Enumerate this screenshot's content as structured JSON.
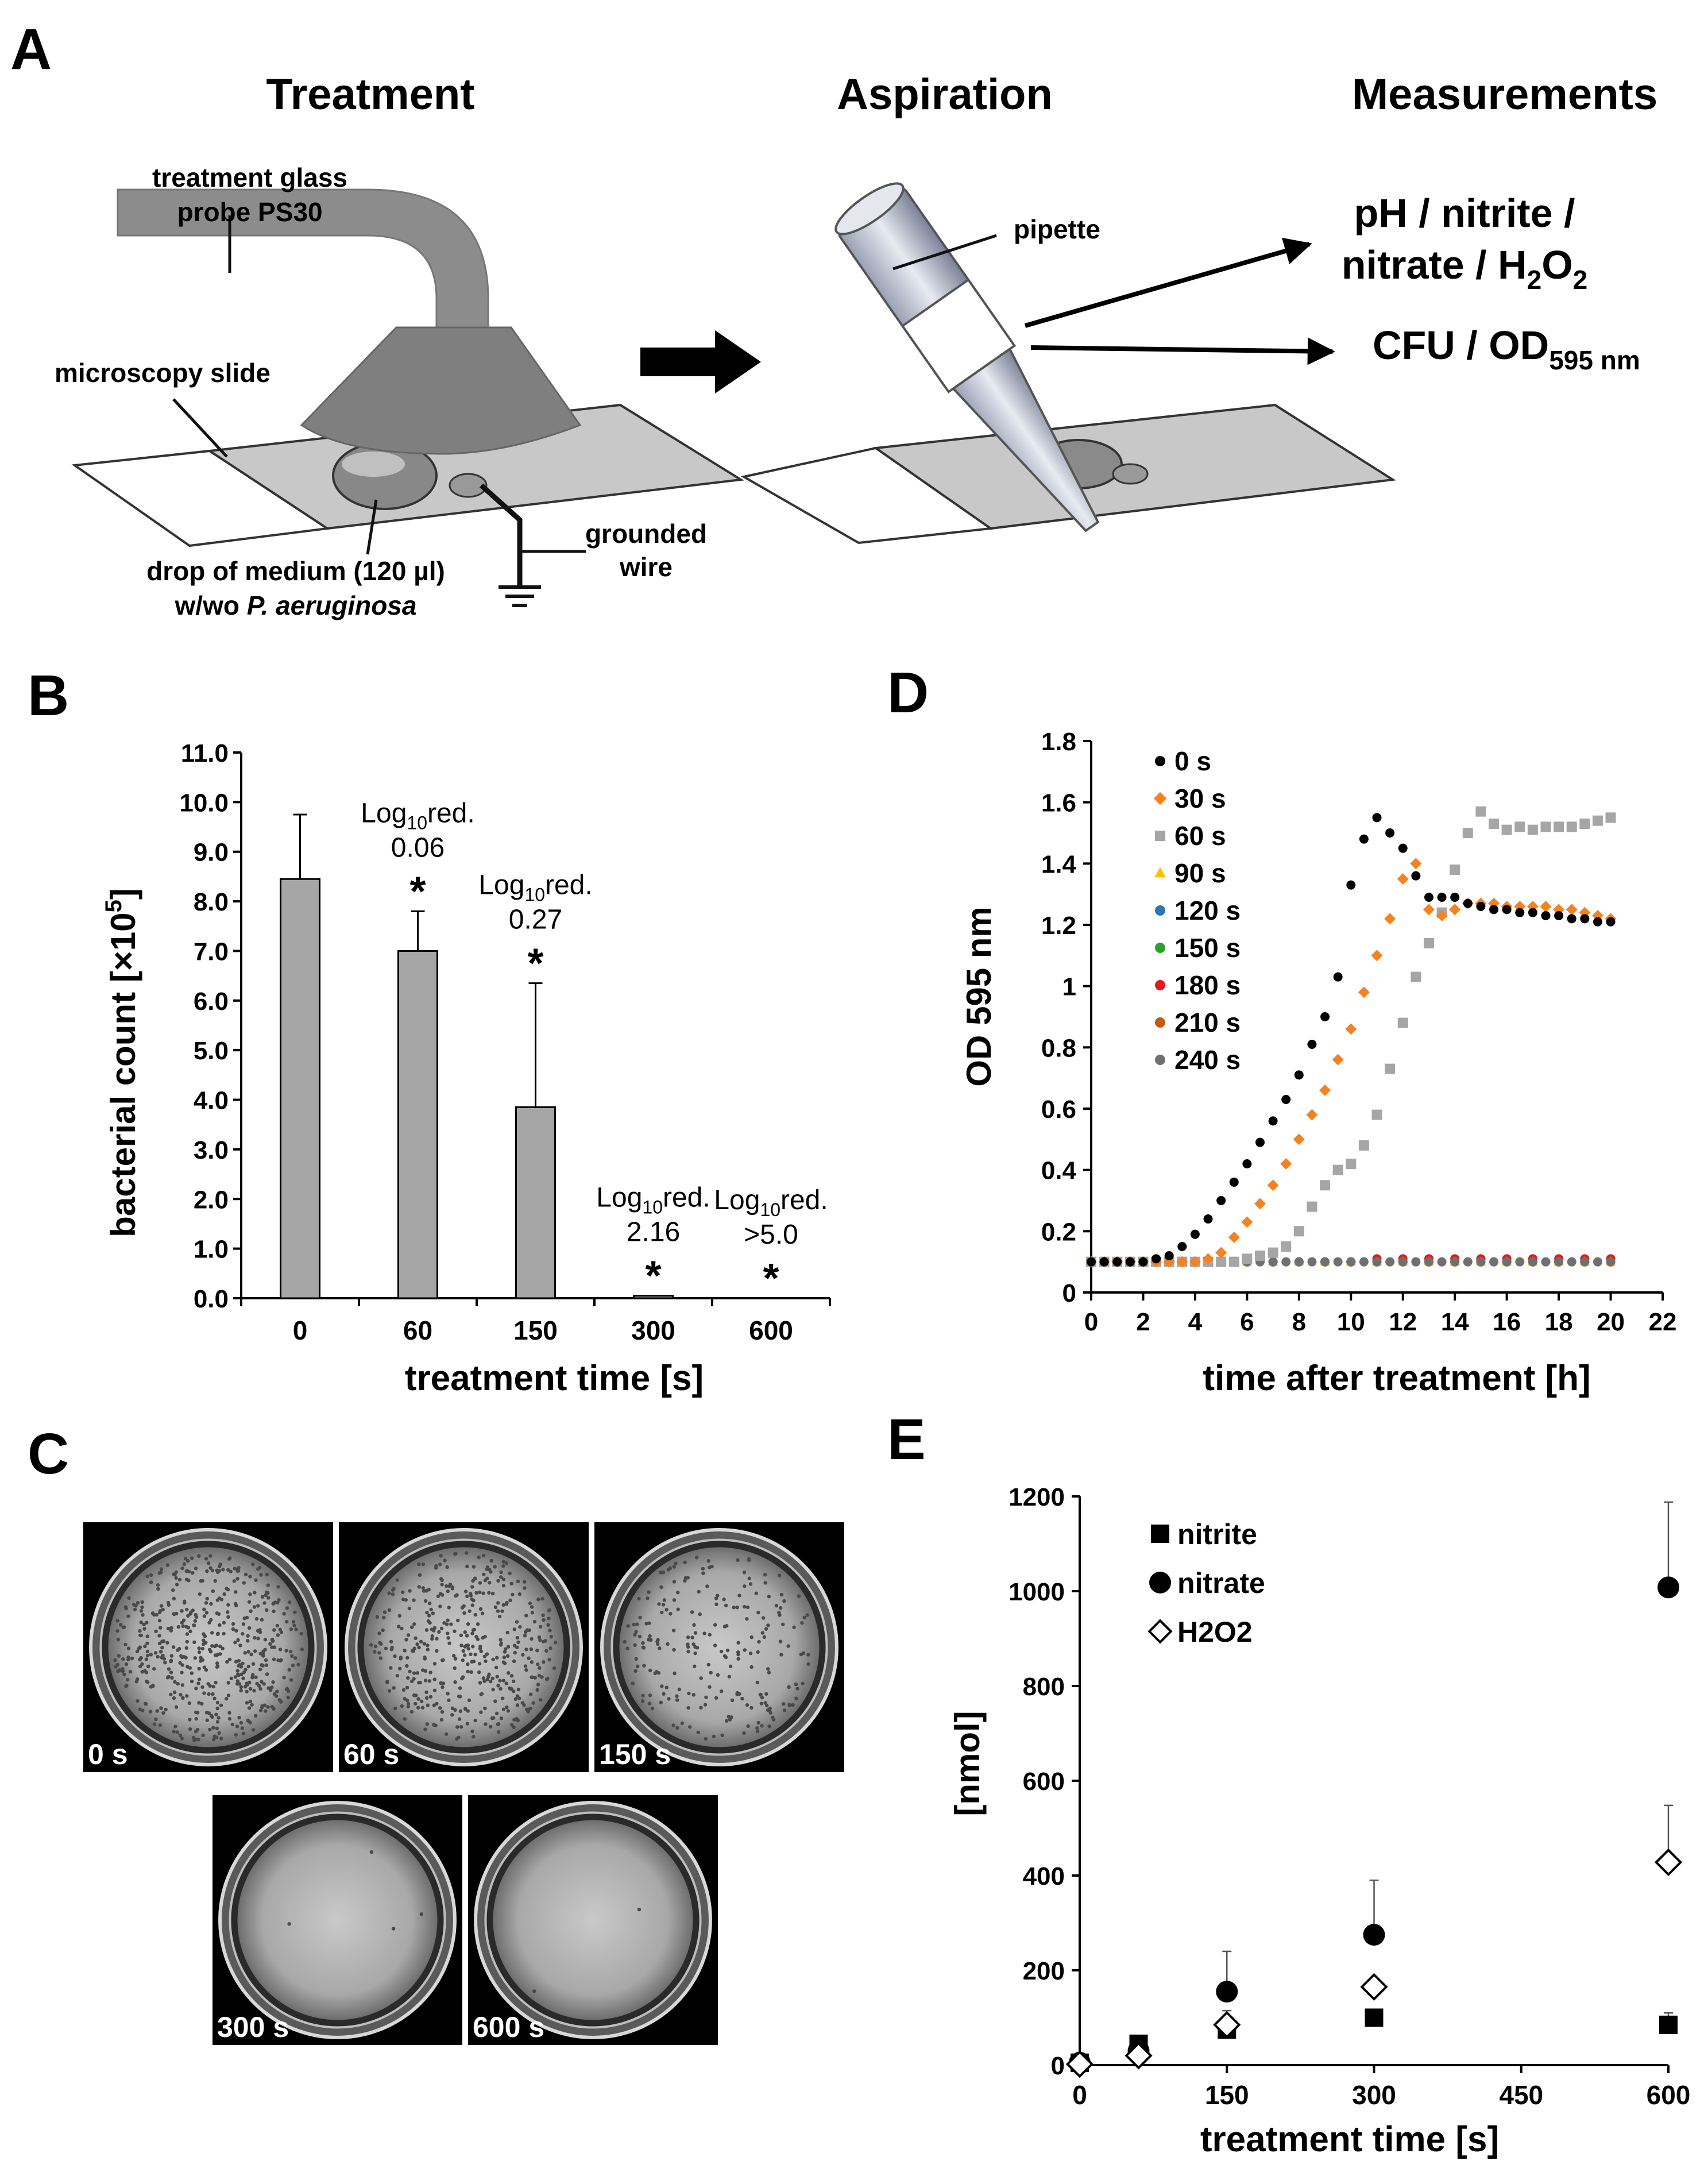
{
  "panels": {
    "a": {
      "letter": "A",
      "headings": {
        "treatment": "Treatment",
        "aspiration": "Aspiration",
        "measurements": "Measurements"
      },
      "labels": {
        "probe_line1": "treatment glass",
        "probe_line2": "probe PS30",
        "slide": "microscopy slide",
        "drop_line1": "drop of medium (120 µl)",
        "drop_line2_prefix": "w/wo ",
        "drop_line2_italic": "P. aeruginosa",
        "wire_line1": "grounded",
        "wire_line2": "wire",
        "pipette": "pipette",
        "meas_line1": "pH / nitrite /",
        "meas_line2_prefix": "nitrate / H",
        "meas_sub_2": "2",
        "meas_o": "O",
        "meas_cfu": "CFU / OD",
        "meas_cfu_sub": "595 nm"
      }
    },
    "b": {
      "letter": "B"
    },
    "c": {
      "letter": "C",
      "plates": [
        "0 s",
        "60 s",
        "150 s",
        "300 s",
        "600 s"
      ]
    },
    "d": {
      "letter": "D"
    },
    "e": {
      "letter": "E"
    }
  },
  "chart_data": [
    {
      "id": "B",
      "type": "bar",
      "categories": [
        "0",
        "60",
        "150",
        "300",
        "600"
      ],
      "values": [
        8.45,
        7.0,
        3.85,
        0.05,
        0.0
      ],
      "error_plus": [
        1.3,
        0.8,
        2.5,
        0.0,
        0.0
      ],
      "xlabel": "treatment time [s]",
      "ylabel_prefix": "bacterial count [×10",
      "ylabel_sup": "5",
      "ylabel_suffix": "]",
      "ylim": [
        0,
        11
      ],
      "yticks": [
        "0.0",
        "1.0",
        "2.0",
        "3.0",
        "4.0",
        "5.0",
        "6.0",
        "7.0",
        "8.0",
        "9.0",
        "10.0",
        "11.0"
      ],
      "significance": [
        "",
        "*",
        "*",
        "*",
        "*"
      ],
      "annotations": [
        {
          "category": "60",
          "prefix": "Log",
          "sub": "10",
          "suffix": "red.",
          "value": "0.06"
        },
        {
          "category": "150",
          "prefix": "Log",
          "sub": "10",
          "suffix": "red.",
          "value": "0.27"
        },
        {
          "category": "300",
          "prefix": "Log",
          "sub": "10",
          "suffix": "red.",
          "value": "2.16"
        },
        {
          "category": "600",
          "prefix": "Log",
          "sub": "10",
          "suffix": "red.",
          "value": ">5.0"
        }
      ]
    },
    {
      "id": "D",
      "type": "scatter",
      "xlabel": "time after treatment [h]",
      "ylabel": "OD 595 nm",
      "xlim": [
        0,
        22
      ],
      "ylim": [
        0,
        1.8
      ],
      "xticks": [
        "0",
        "2",
        "4",
        "6",
        "8",
        "10",
        "12",
        "14",
        "16",
        "18",
        "20",
        "22"
      ],
      "yticks": [
        "0",
        "0.2",
        "0.4",
        "0.6",
        "0.8",
        "1",
        "1.2",
        "1.4",
        "1.6",
        "1.8"
      ],
      "legend": "top-left",
      "series": [
        {
          "name": "0 s",
          "color": "#000000",
          "marker": "circle",
          "x": [
            0,
            0.5,
            1,
            1.5,
            2,
            2.5,
            3,
            3.5,
            4,
            4.5,
            5,
            5.5,
            6,
            6.5,
            7,
            7.5,
            8,
            8.5,
            9,
            9.5,
            10,
            10.5,
            11,
            11.5,
            12,
            12.5,
            13,
            13.5,
            14,
            14.5,
            15,
            15.5,
            16,
            16.5,
            17,
            17.5,
            18,
            18.5,
            19,
            19.5,
            20
          ],
          "y": [
            0.1,
            0.1,
            0.1,
            0.1,
            0.1,
            0.11,
            0.12,
            0.15,
            0.19,
            0.24,
            0.3,
            0.36,
            0.42,
            0.49,
            0.56,
            0.63,
            0.71,
            0.81,
            0.9,
            1.03,
            1.33,
            1.48,
            1.55,
            1.5,
            1.45,
            1.36,
            1.29,
            1.29,
            1.29,
            1.27,
            1.26,
            1.25,
            1.25,
            1.24,
            1.24,
            1.23,
            1.23,
            1.22,
            1.22,
            1.21,
            1.21
          ]
        },
        {
          "name": "30 s",
          "color": "#f58220",
          "marker": "diamond",
          "x": [
            0,
            0.5,
            1,
            1.5,
            2,
            2.5,
            3,
            3.5,
            4,
            4.5,
            5,
            5.5,
            6,
            6.5,
            7,
            7.5,
            8,
            8.5,
            9,
            9.5,
            10,
            10.5,
            11,
            11.5,
            12,
            12.5,
            13,
            13.5,
            14,
            14.5,
            15,
            15.5,
            16,
            16.5,
            17,
            17.5,
            18,
            18.5,
            19,
            19.5,
            20
          ],
          "y": [
            0.1,
            0.1,
            0.1,
            0.1,
            0.1,
            0.1,
            0.1,
            0.1,
            0.1,
            0.11,
            0.13,
            0.18,
            0.23,
            0.29,
            0.35,
            0.42,
            0.5,
            0.58,
            0.66,
            0.76,
            0.86,
            0.98,
            1.1,
            1.22,
            1.35,
            1.4,
            1.25,
            1.23,
            1.25,
            1.27,
            1.27,
            1.27,
            1.26,
            1.26,
            1.26,
            1.26,
            1.25,
            1.25,
            1.24,
            1.23,
            1.22
          ]
        },
        {
          "name": "60 s",
          "color": "#a6a6a6",
          "marker": "square",
          "x": [
            0,
            0.5,
            1,
            1.5,
            2,
            2.5,
            3,
            3.5,
            4,
            4.5,
            5,
            5.5,
            6,
            6.5,
            7,
            7.5,
            8,
            8.5,
            9,
            9.5,
            10,
            10.5,
            11,
            11.5,
            12,
            12.5,
            13,
            13.5,
            14,
            14.5,
            15,
            15.5,
            16,
            16.5,
            17,
            17.5,
            18,
            18.5,
            19,
            19.5,
            20
          ],
          "y": [
            0.1,
            0.1,
            0.1,
            0.1,
            0.1,
            0.1,
            0.1,
            0.1,
            0.1,
            0.1,
            0.1,
            0.1,
            0.11,
            0.12,
            0.13,
            0.15,
            0.2,
            0.28,
            0.35,
            0.4,
            0.42,
            0.48,
            0.58,
            0.73,
            0.88,
            1.03,
            1.14,
            1.24,
            1.38,
            1.5,
            1.57,
            1.53,
            1.51,
            1.52,
            1.51,
            1.52,
            1.52,
            1.52,
            1.53,
            1.54,
            1.55
          ]
        },
        {
          "name": "90 s",
          "color": "#ffc000",
          "marker": "triangle",
          "x": [
            0,
            1,
            2,
            3,
            4,
            5,
            6,
            7,
            8,
            9,
            10,
            11,
            12,
            13,
            14,
            15,
            16,
            17,
            18,
            19,
            20
          ],
          "y": [
            0.1,
            0.1,
            0.1,
            0.1,
            0.1,
            0.1,
            0.1,
            0.1,
            0.1,
            0.1,
            0.1,
            0.1,
            0.1,
            0.1,
            0.1,
            0.1,
            0.1,
            0.1,
            0.1,
            0.1,
            0.1
          ]
        },
        {
          "name": "120 s",
          "color": "#2e75b6",
          "marker": "circle",
          "x": [
            0,
            1,
            2,
            3,
            4,
            5,
            6,
            7,
            8,
            9,
            10,
            11,
            12,
            13,
            14,
            15,
            16,
            17,
            18,
            19,
            20
          ],
          "y": [
            0.1,
            0.1,
            0.1,
            0.1,
            0.1,
            0.1,
            0.1,
            0.1,
            0.1,
            0.1,
            0.1,
            0.1,
            0.1,
            0.1,
            0.1,
            0.1,
            0.1,
            0.1,
            0.1,
            0.1,
            0.1
          ]
        },
        {
          "name": "150 s",
          "color": "#2ca02c",
          "marker": "circle",
          "x": [
            0,
            1,
            2,
            3,
            4,
            5,
            6,
            7,
            8,
            9,
            10,
            11,
            12,
            13,
            14,
            15,
            16,
            17,
            18,
            19,
            20
          ],
          "y": [
            0.1,
            0.1,
            0.1,
            0.1,
            0.1,
            0.1,
            0.1,
            0.1,
            0.1,
            0.1,
            0.1,
            0.1,
            0.1,
            0.1,
            0.1,
            0.1,
            0.1,
            0.1,
            0.1,
            0.1,
            0.1
          ]
        },
        {
          "name": "180 s",
          "color": "#e31a1c",
          "marker": "circle",
          "x": [
            0,
            1,
            2,
            3,
            4,
            5,
            6,
            7,
            8,
            9,
            10,
            11,
            12,
            13,
            14,
            15,
            16,
            17,
            18,
            19,
            20
          ],
          "y": [
            0.1,
            0.1,
            0.1,
            0.1,
            0.1,
            0.1,
            0.1,
            0.1,
            0.1,
            0.1,
            0.1,
            0.11,
            0.11,
            0.11,
            0.11,
            0.11,
            0.11,
            0.11,
            0.11,
            0.11,
            0.11
          ]
        },
        {
          "name": "210 s",
          "color": "#c55a11",
          "marker": "circle",
          "x": [
            0,
            1,
            2,
            3,
            4,
            5,
            6,
            7,
            8,
            9,
            10,
            11,
            12,
            13,
            14,
            15,
            16,
            17,
            18,
            19,
            20
          ],
          "y": [
            0.1,
            0.1,
            0.1,
            0.1,
            0.1,
            0.1,
            0.1,
            0.1,
            0.1,
            0.1,
            0.1,
            0.1,
            0.1,
            0.1,
            0.1,
            0.1,
            0.1,
            0.1,
            0.1,
            0.1,
            0.1
          ]
        },
        {
          "name": "240 s",
          "color": "#707070",
          "marker": "circle",
          "x": [
            0,
            0.5,
            1,
            1.5,
            2,
            2.5,
            3,
            3.5,
            4,
            4.5,
            5,
            5.5,
            6,
            6.5,
            7,
            7.5,
            8,
            8.5,
            9,
            9.5,
            10,
            10.5,
            11,
            11.5,
            12,
            12.5,
            13,
            13.5,
            14,
            14.5,
            15,
            15.5,
            16,
            16.5,
            17,
            17.5,
            18,
            18.5,
            19,
            19.5,
            20
          ],
          "y": [
            0.1,
            0.1,
            0.1,
            0.1,
            0.1,
            0.1,
            0.1,
            0.1,
            0.1,
            0.1,
            0.1,
            0.1,
            0.1,
            0.1,
            0.1,
            0.1,
            0.1,
            0.1,
            0.1,
            0.1,
            0.1,
            0.1,
            0.1,
            0.1,
            0.1,
            0.1,
            0.1,
            0.1,
            0.1,
            0.1,
            0.1,
            0.1,
            0.1,
            0.1,
            0.1,
            0.1,
            0.1,
            0.1,
            0.1,
            0.1,
            0.1
          ]
        }
      ]
    },
    {
      "id": "E",
      "type": "scatter",
      "xlabel": "treatment time [s]",
      "ylabel": "[nmol]",
      "xlim": [
        0,
        600
      ],
      "ylim": [
        0,
        1200
      ],
      "xticks": [
        "0",
        "150",
        "300",
        "450",
        "600"
      ],
      "yticks": [
        "0",
        "200",
        "400",
        "600",
        "800",
        "1000",
        "1200"
      ],
      "legend": "top-left",
      "series": [
        {
          "name": "nitrite",
          "marker": "square",
          "fill": "#000000",
          "x": [
            0,
            60,
            150,
            300,
            600
          ],
          "y": [
            5,
            45,
            75,
            100,
            85
          ],
          "err": [
            0,
            0,
            0,
            0,
            25
          ]
        },
        {
          "name": "nitrate",
          "marker": "circle",
          "fill": "#000000",
          "x": [
            0,
            60,
            150,
            300,
            600
          ],
          "y": [
            5,
            30,
            155,
            275,
            1008
          ],
          "err": [
            0,
            0,
            85,
            115,
            180
          ]
        },
        {
          "name": "H2O2",
          "marker": "diamond",
          "fill": "#ffffff",
          "x": [
            0,
            60,
            150,
            300,
            600
          ],
          "y": [
            2,
            20,
            85,
            165,
            428
          ],
          "err": [
            0,
            0,
            30,
            0,
            120
          ]
        }
      ]
    }
  ]
}
